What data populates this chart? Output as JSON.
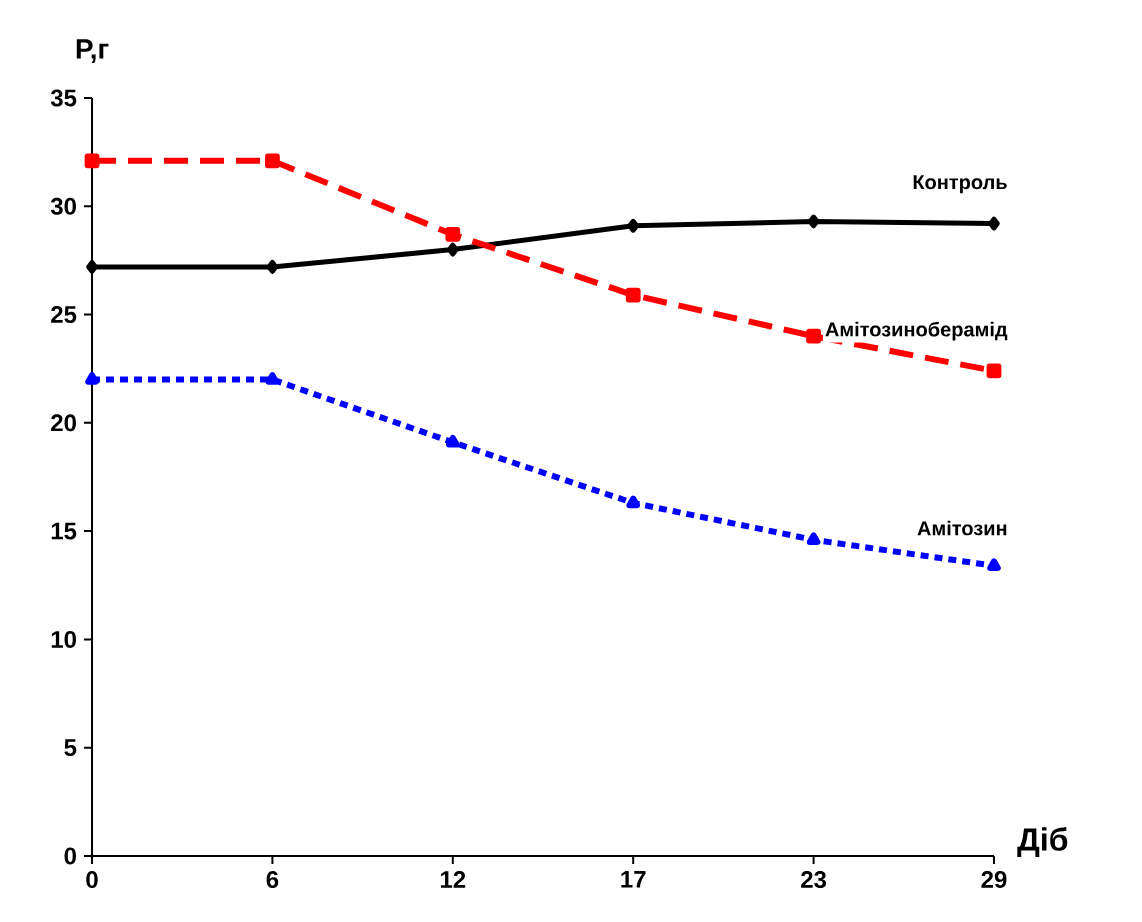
{
  "chart_data": {
    "type": "line",
    "xlabel": "Діб",
    "ylabel": "Р,г",
    "categories": [
      "0",
      "6",
      "12",
      "17",
      "23",
      "29"
    ],
    "ylim": [
      0,
      35
    ],
    "yticks": [
      0,
      5,
      10,
      15,
      20,
      25,
      30,
      35
    ],
    "grid": false,
    "legend": false,
    "series": [
      {
        "name": "Контроль",
        "color": "#000000",
        "marker": "diamond",
        "line_style": "solid",
        "values": [
          27.2,
          27.2,
          28.0,
          29.1,
          29.3,
          29.2
        ]
      },
      {
        "name": "Амітозиноберамід",
        "color": "#ff0000",
        "marker": "square",
        "line_style": "dashed",
        "values": [
          32.1,
          32.1,
          28.7,
          25.9,
          24.0,
          22.4
        ]
      },
      {
        "name": "Амітозин",
        "color": "#0000ff",
        "marker": "triangle",
        "line_style": "dotted",
        "values": [
          22.0,
          22.0,
          19.1,
          16.3,
          14.6,
          13.4
        ]
      }
    ]
  }
}
